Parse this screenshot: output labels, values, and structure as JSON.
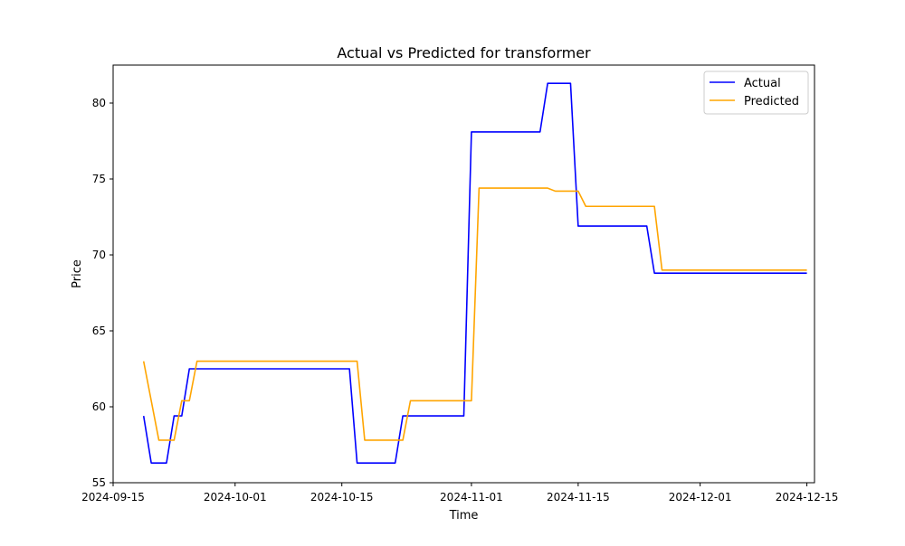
{
  "chart_data": {
    "type": "line",
    "title": "Actual vs Predicted for transformer",
    "xlabel": "Time",
    "ylabel": "Price",
    "xlim": [
      "2024-09-15",
      "2024-12-16"
    ],
    "ylim": [
      55,
      82.5
    ],
    "x_ticks": [
      "2024-09-15",
      "2024-10-01",
      "2024-10-15",
      "2024-11-01",
      "2024-11-15",
      "2024-12-01",
      "2024-12-15"
    ],
    "y_ticks": [
      55,
      60,
      65,
      70,
      75,
      80
    ],
    "grid": false,
    "legend": "top-right",
    "series": [
      {
        "name": "Actual",
        "color": "#0000ff",
        "points": [
          [
            "2024-09-19",
            59.4
          ],
          [
            "2024-09-20",
            56.3
          ],
          [
            "2024-09-21",
            56.3
          ],
          [
            "2024-09-22",
            56.3
          ],
          [
            "2024-09-23",
            59.4
          ],
          [
            "2024-09-24",
            59.4
          ],
          [
            "2024-09-25",
            62.5
          ],
          [
            "2024-09-26",
            62.5
          ],
          [
            "2024-10-16",
            62.5
          ],
          [
            "2024-10-17",
            56.3
          ],
          [
            "2024-10-22",
            56.3
          ],
          [
            "2024-10-23",
            59.4
          ],
          [
            "2024-10-31",
            59.4
          ],
          [
            "2024-11-01",
            78.1
          ],
          [
            "2024-11-10",
            78.1
          ],
          [
            "2024-11-11",
            81.3
          ],
          [
            "2024-11-14",
            81.3
          ],
          [
            "2024-11-15",
            71.9
          ],
          [
            "2024-11-24",
            71.9
          ],
          [
            "2024-11-25",
            68.8
          ],
          [
            "2024-12-15",
            68.8
          ]
        ]
      },
      {
        "name": "Predicted",
        "color": "#ffa500",
        "points": [
          [
            "2024-09-19",
            63.0
          ],
          [
            "2024-09-21",
            57.8
          ],
          [
            "2024-09-23",
            57.8
          ],
          [
            "2024-09-24",
            60.4
          ],
          [
            "2024-09-25",
            60.4
          ],
          [
            "2024-09-26",
            63.0
          ],
          [
            "2024-10-17",
            63.0
          ],
          [
            "2024-10-18",
            57.8
          ],
          [
            "2024-10-23",
            57.8
          ],
          [
            "2024-10-24",
            60.4
          ],
          [
            "2024-11-01",
            60.4
          ],
          [
            "2024-11-02",
            74.4
          ],
          [
            "2024-11-11",
            74.4
          ],
          [
            "2024-11-12",
            74.2
          ],
          [
            "2024-11-15",
            74.2
          ],
          [
            "2024-11-16",
            73.2
          ],
          [
            "2024-11-25",
            73.2
          ],
          [
            "2024-11-26",
            69.0
          ],
          [
            "2024-12-15",
            69.0
          ]
        ]
      }
    ]
  }
}
